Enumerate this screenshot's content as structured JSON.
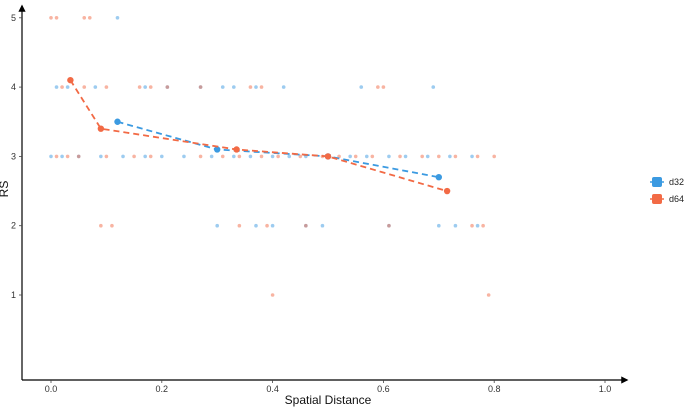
{
  "chart_data": {
    "type": "scatter",
    "title": "",
    "xlabel": "Spatial Distance",
    "ylabel": "RS",
    "xlim": [
      -0.06,
      1.03
    ],
    "ylim": [
      -0.25,
      5.2
    ],
    "x_ticks": [
      0.0,
      0.2,
      0.4,
      0.6,
      0.8,
      1.0
    ],
    "x_tick_labels": [
      "0.0",
      "0.2",
      "0.4",
      "0.6",
      "0.8",
      "1.0"
    ],
    "y_ticks": [
      1,
      2,
      3,
      4,
      5
    ],
    "y_tick_labels": [
      "1",
      "2",
      "3",
      "4",
      "5"
    ],
    "grid": false,
    "legend_position": "right",
    "series": [
      {
        "name": "d32",
        "color": "#3b9ae1",
        "trend": [
          [
            0.12,
            3.5
          ],
          [
            0.3,
            3.1
          ],
          [
            0.5,
            3.0
          ],
          [
            0.7,
            2.7
          ]
        ],
        "points": [
          [
            0.12,
            5
          ],
          [
            0.01,
            4
          ],
          [
            0.03,
            4
          ],
          [
            0.08,
            4
          ],
          [
            0.17,
            4
          ],
          [
            0.21,
            4
          ],
          [
            0.27,
            4
          ],
          [
            0.31,
            4
          ],
          [
            0.33,
            4
          ],
          [
            0.37,
            4
          ],
          [
            0.42,
            4
          ],
          [
            0.56,
            4
          ],
          [
            0.69,
            4
          ],
          [
            0.0,
            3
          ],
          [
            0.02,
            3
          ],
          [
            0.05,
            3
          ],
          [
            0.09,
            3
          ],
          [
            0.13,
            3
          ],
          [
            0.17,
            3
          ],
          [
            0.2,
            3
          ],
          [
            0.24,
            3
          ],
          [
            0.29,
            3
          ],
          [
            0.33,
            3
          ],
          [
            0.36,
            3
          ],
          [
            0.4,
            3
          ],
          [
            0.43,
            3
          ],
          [
            0.46,
            3
          ],
          [
            0.5,
            3
          ],
          [
            0.54,
            3
          ],
          [
            0.57,
            3
          ],
          [
            0.61,
            3
          ],
          [
            0.64,
            3
          ],
          [
            0.68,
            3
          ],
          [
            0.72,
            3
          ],
          [
            0.76,
            3
          ],
          [
            0.3,
            2
          ],
          [
            0.37,
            2
          ],
          [
            0.4,
            2
          ],
          [
            0.46,
            2
          ],
          [
            0.49,
            2
          ],
          [
            0.61,
            2
          ],
          [
            0.7,
            2
          ],
          [
            0.73,
            2
          ],
          [
            0.77,
            2
          ]
        ]
      },
      {
        "name": "d64",
        "color": "#f26a45",
        "trend": [
          [
            0.035,
            4.1
          ],
          [
            0.09,
            3.4
          ],
          [
            0.335,
            3.1
          ],
          [
            0.5,
            3.0
          ],
          [
            0.715,
            2.5
          ]
        ],
        "points": [
          [
            0.0,
            5
          ],
          [
            0.01,
            5
          ],
          [
            0.06,
            5
          ],
          [
            0.07,
            5
          ],
          [
            0.02,
            4
          ],
          [
            0.06,
            4
          ],
          [
            0.1,
            4
          ],
          [
            0.16,
            4
          ],
          [
            0.18,
            4
          ],
          [
            0.21,
            4
          ],
          [
            0.27,
            4
          ],
          [
            0.36,
            4
          ],
          [
            0.38,
            4
          ],
          [
            0.59,
            4
          ],
          [
            0.6,
            4
          ],
          [
            0.01,
            3
          ],
          [
            0.03,
            3
          ],
          [
            0.05,
            3
          ],
          [
            0.1,
            3
          ],
          [
            0.15,
            3
          ],
          [
            0.18,
            3
          ],
          [
            0.27,
            3
          ],
          [
            0.31,
            3
          ],
          [
            0.34,
            3
          ],
          [
            0.38,
            3
          ],
          [
            0.41,
            3
          ],
          [
            0.45,
            3
          ],
          [
            0.49,
            3
          ],
          [
            0.52,
            3
          ],
          [
            0.55,
            3
          ],
          [
            0.58,
            3
          ],
          [
            0.63,
            3
          ],
          [
            0.67,
            3
          ],
          [
            0.7,
            3
          ],
          [
            0.73,
            3
          ],
          [
            0.77,
            3
          ],
          [
            0.8,
            3
          ],
          [
            0.09,
            2
          ],
          [
            0.11,
            2
          ],
          [
            0.34,
            2
          ],
          [
            0.39,
            2
          ],
          [
            0.46,
            2
          ],
          [
            0.61,
            2
          ],
          [
            0.76,
            2
          ],
          [
            0.78,
            2
          ],
          [
            0.4,
            1
          ],
          [
            0.79,
            1
          ]
        ]
      }
    ]
  }
}
